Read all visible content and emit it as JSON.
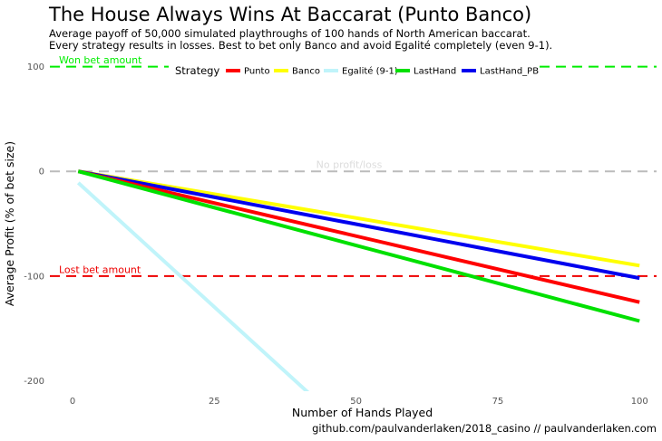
{
  "header": {
    "title": "The House Always Wins At Baccarat (Punto Banco)",
    "subtitle_line1": "Average payoff of 50,000 simulated playthroughs of 100 hands of North American baccarat.",
    "subtitle_line2": "Every strategy results in losses. Best to bet only Banco and avoid Egalité completely (even 9-1)."
  },
  "caption": "github.com/paulvanderlaken/2018_casino   //   paulvanderlaken.com",
  "chart_data": {
    "type": "line",
    "xlabel": "Number of Hands Played",
    "ylabel": "Average Profit (% of bet size)",
    "xlim": [
      -4,
      103
    ],
    "ylim": [
      -210,
      110
    ],
    "x_ticks": [
      0,
      25,
      50,
      75,
      100
    ],
    "y_ticks": [
      -200,
      -100,
      0,
      100
    ],
    "x_tick_labels": [
      "0",
      "25",
      "50",
      "75",
      "100"
    ],
    "y_tick_labels": [
      "-200",
      "-100",
      "0",
      "100"
    ],
    "grid": false,
    "legend": {
      "title": "Strategy",
      "placement": "top"
    },
    "series": [
      {
        "name": "Punto",
        "color": "#ff0000",
        "x": [
          1,
          100
        ],
        "y": [
          0,
          -125
        ]
      },
      {
        "name": "Banco",
        "color": "#ffff00",
        "x": [
          1,
          100
        ],
        "y": [
          0,
          -90
        ]
      },
      {
        "name": "Egalité (9-1)",
        "color": "#c0f4fa",
        "x": [
          1,
          42.5
        ],
        "y": [
          -11,
          -216
        ]
      },
      {
        "name": "LastHand",
        "color": "#00e000",
        "x": [
          1,
          100
        ],
        "y": [
          0,
          -143
        ]
      },
      {
        "name": "LastHand_PB",
        "color": "#0000ee",
        "x": [
          1,
          100
        ],
        "y": [
          0,
          -102
        ]
      }
    ],
    "reference_lines": [
      {
        "y": 100,
        "label": "Won bet amount",
        "color": "#00ee00",
        "style": "dashed"
      },
      {
        "y": 0,
        "label": "No profit/loss",
        "color": "#bbbbbb",
        "style": "dashed"
      },
      {
        "y": -100,
        "label": "Lost bet amount",
        "color": "#ee0000",
        "style": "dashed"
      }
    ]
  }
}
